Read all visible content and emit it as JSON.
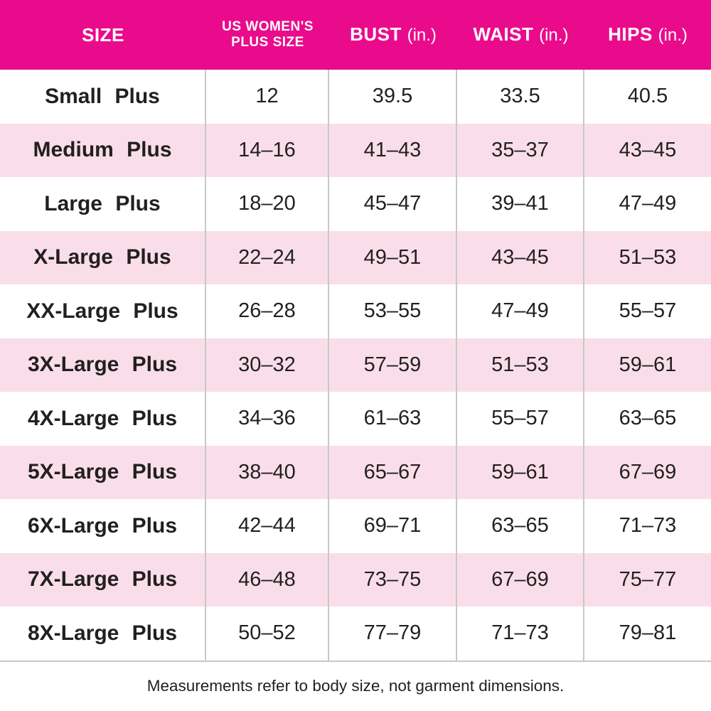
{
  "chart_data": {
    "type": "table",
    "columns": [
      {
        "label": "SIZE"
      },
      {
        "label": "US WOMEN'S PLUS SIZE",
        "line1": "US WOMEN'S",
        "line2": "PLUS SIZE"
      },
      {
        "label": "BUST",
        "unit": "(in.)"
      },
      {
        "label": "WAIST",
        "unit": "(in.)"
      },
      {
        "label": "HIPS",
        "unit": "(in.)"
      }
    ],
    "rows": [
      {
        "size": "Small Plus",
        "us_plus_size": "12",
        "bust": "39.5",
        "waist": "33.5",
        "hips": "40.5"
      },
      {
        "size": "Medium Plus",
        "us_plus_size": "14–16",
        "bust": "41–43",
        "waist": "35–37",
        "hips": "43–45"
      },
      {
        "size": "Large Plus",
        "us_plus_size": "18–20",
        "bust": "45–47",
        "waist": "39–41",
        "hips": "47–49"
      },
      {
        "size": "X-Large Plus",
        "us_plus_size": "22–24",
        "bust": "49–51",
        "waist": "43–45",
        "hips": "51–53"
      },
      {
        "size": "XX-Large Plus",
        "us_plus_size": "26–28",
        "bust": "53–55",
        "waist": "47–49",
        "hips": "55–57"
      },
      {
        "size": "3X-Large Plus",
        "us_plus_size": "30–32",
        "bust": "57–59",
        "waist": "51–53",
        "hips": "59–61"
      },
      {
        "size": "4X-Large Plus",
        "us_plus_size": "34–36",
        "bust": "61–63",
        "waist": "55–57",
        "hips": "63–65"
      },
      {
        "size": "5X-Large Plus",
        "us_plus_size": "38–40",
        "bust": "65–67",
        "waist": "59–61",
        "hips": "67–69"
      },
      {
        "size": "6X-Large Plus",
        "us_plus_size": "42–44",
        "bust": "69–71",
        "waist": "63–65",
        "hips": "71–73"
      },
      {
        "size": "7X-Large Plus",
        "us_plus_size": "46–48",
        "bust": "73–75",
        "waist": "67–69",
        "hips": "75–77"
      },
      {
        "size": "8X-Large Plus",
        "us_plus_size": "50–52",
        "bust": "77–79",
        "waist": "71–73",
        "hips": "79–81"
      }
    ]
  },
  "footer": {
    "note": "Measurements refer to body size, not garment dimensions."
  },
  "colors": {
    "header_bg": "#EA0B8C",
    "row_alt_bg": "#F9DEE9",
    "text": "#231F20",
    "header_text": "#FFFFFF",
    "divider": "#C8C8C8"
  }
}
